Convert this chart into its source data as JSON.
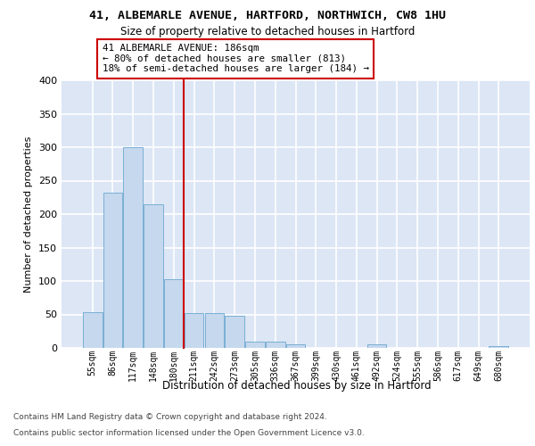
{
  "title1": "41, ALBEMARLE AVENUE, HARTFORD, NORTHWICH, CW8 1HU",
  "title2": "Size of property relative to detached houses in Hartford",
  "xlabel": "Distribution of detached houses by size in Hartford",
  "ylabel": "Number of detached properties",
  "categories": [
    "55sqm",
    "86sqm",
    "117sqm",
    "148sqm",
    "180sqm",
    "211sqm",
    "242sqm",
    "273sqm",
    "305sqm",
    "336sqm",
    "367sqm",
    "399sqm",
    "430sqm",
    "461sqm",
    "492sqm",
    "524sqm",
    "555sqm",
    "586sqm",
    "617sqm",
    "649sqm",
    "680sqm"
  ],
  "values": [
    53,
    232,
    300,
    215,
    103,
    52,
    52,
    48,
    10,
    10,
    6,
    0,
    0,
    0,
    5,
    0,
    0,
    0,
    0,
    0,
    3
  ],
  "bar_color": "#c5d8ee",
  "bar_edge_color": "#7aafd4",
  "property_line_x": 4.5,
  "property_label": "41 ALBEMARLE AVENUE: 186sqm",
  "annotation_line1": "← 80% of detached houses are smaller (813)",
  "annotation_line2": "18% of semi-detached houses are larger (184) →",
  "ylim_max": 400,
  "yticks": [
    0,
    50,
    100,
    150,
    200,
    250,
    300,
    350,
    400
  ],
  "bg_color": "#dce6f5",
  "grid_color": "#ffffff",
  "footer_line1": "Contains HM Land Registry data © Crown copyright and database right 2024.",
  "footer_line2": "Contains public sector information licensed under the Open Government Licence v3.0."
}
